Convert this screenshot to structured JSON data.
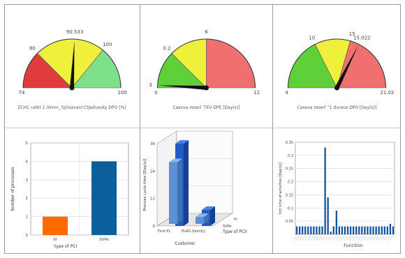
{
  "gauges": [
    {
      "caption": "ZCHC celkt 1 (Ilmm_7p)isovanl Ctjednavky DPO [%]",
      "min_label": "74",
      "max_label": "100",
      "tick_labels": [
        "80",
        "90.533",
        "100"
      ],
      "value": 90.533,
      "min": 74,
      "max": 106,
      "zones": [
        {
          "from": 74,
          "to": 82,
          "color": "#e23b3b"
        },
        {
          "from": 82,
          "to": 97,
          "color": "#eef03c"
        },
        {
          "from": 97,
          "to": 106,
          "color": "#7fe08a"
        }
      ]
    },
    {
      "caption": "Casova rezerl 'TEV DPE [Day(s)]",
      "min_label": "0",
      "max_label": "12",
      "tick_labels": [
        "0.2",
        "3",
        "6"
      ],
      "value": 0.2,
      "min": 0,
      "max": 12,
      "zones": [
        {
          "from": 0,
          "to": 3,
          "color": "#5fcf3a"
        },
        {
          "from": 3,
          "to": 6,
          "color": "#eef03c"
        },
        {
          "from": 6,
          "to": 12,
          "color": "#f07070"
        }
      ]
    },
    {
      "caption": "Casova rezerl ''1 durace DPO [Day(s)]",
      "min_label": "4",
      "max_label": "21.02",
      "tick_labels": [
        "10",
        "15.022",
        "15"
      ],
      "value": 15.022,
      "min": 4,
      "max": 21.02,
      "zones": [
        {
          "from": 4,
          "to": 10,
          "color": "#5fcf3a"
        },
        {
          "from": 10,
          "to": 14,
          "color": "#eef03c"
        },
        {
          "from": 14,
          "to": 21.02,
          "color": "#f07070"
        }
      ]
    }
  ],
  "chart_data": [
    {
      "type": "bar",
      "ylabel": "Number of processes",
      "xlabel": "type of PCI",
      "categories": [
        "IV",
        "SVPe"
      ],
      "values": [
        1,
        4
      ],
      "colors": [
        "#ff6a00",
        "#0b5f9a"
      ],
      "ylim": [
        0,
        5
      ],
      "yticks": [
        "0",
        "1",
        "2",
        "3",
        "4",
        "5"
      ],
      "grid": true
    },
    {
      "type": "bar",
      "ylabel": "Process cycle time [Day(s)]",
      "xlabel": "Customer",
      "zlabel": "Type of PCII",
      "categories": [
        "Ford PL",
        "PLAG (family)"
      ],
      "series_labels": [
        "IV",
        "SVPe"
      ],
      "values": [
        [
          27,
          36
        ],
        [
          3,
          7
        ]
      ],
      "ylim": [
        0,
        36
      ],
      "yticks": [
        "0",
        "12",
        "24",
        "36"
      ],
      "grid": true
    },
    {
      "type": "bar",
      "ylabel": "Intr time of activities [Day(s)]",
      "xlabel": "Function",
      "values": [
        0.03,
        0.03,
        0.03,
        0.03,
        0.03,
        0.03,
        0.03,
        0.03,
        0.03,
        0.03,
        0.33,
        0.14,
        0.01,
        0.03,
        0.09,
        0.03,
        0.03,
        0.03,
        0.03,
        0.03,
        0.03,
        0.03,
        0.03,
        0.03,
        0.03,
        0.03,
        0.03,
        0.03,
        0.03,
        0.03,
        0.03,
        0.03,
        0.03,
        0.04,
        0.03
      ],
      "ylim": [
        0,
        0.35
      ],
      "yticks": [
        "0.05",
        "0.1",
        "0.15",
        "0.2",
        "0.25",
        "0.3",
        "0.35"
      ],
      "color": "#0d4f9e",
      "grid": true
    }
  ]
}
